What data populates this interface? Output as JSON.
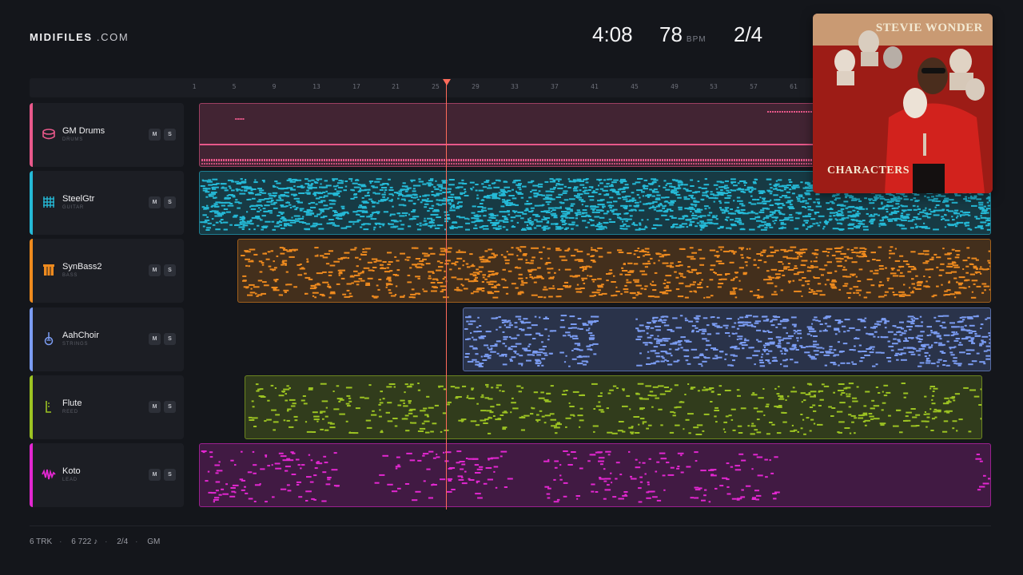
{
  "brand": {
    "bold": "MIDIFILES",
    "dom": ".COM"
  },
  "stats": {
    "time": "4:08",
    "bpm": "78",
    "bpm_unit": "BPM",
    "signature": "2/4"
  },
  "ruler": {
    "ticks": [
      "1",
      "5",
      "9",
      "13",
      "17",
      "21",
      "25",
      "29",
      "33",
      "37",
      "41",
      "45",
      "49",
      "53",
      "57",
      "61"
    ]
  },
  "tracks": [
    {
      "name": "GM Drums",
      "type": "DRUMS",
      "icon": "drum-icon",
      "color": "#e8588a",
      "mute": "M",
      "solo": "S"
    },
    {
      "name": "SteelGtr",
      "type": "GUITAR",
      "icon": "grid-icon",
      "color": "#25b9d6",
      "mute": "M",
      "solo": "S"
    },
    {
      "name": "SynBass2",
      "type": "BASS",
      "icon": "bass-icon",
      "color": "#ee8a1e",
      "mute": "M",
      "solo": "S"
    },
    {
      "name": "AahChoir",
      "type": "STRINGS",
      "icon": "violin-icon",
      "color": "#7b9cf2",
      "mute": "M",
      "solo": "S"
    },
    {
      "name": "Flute",
      "type": "REED",
      "icon": "reed-icon",
      "color": "#9cc322",
      "mute": "M",
      "solo": "S"
    },
    {
      "name": "Koto",
      "type": "LEAD",
      "icon": "wave-icon",
      "color": "#e227d0",
      "mute": "M",
      "solo": "S"
    }
  ],
  "cover": {
    "artist": "STEVIE WONDER",
    "album": "CHARACTERS"
  },
  "footer": {
    "tracks": "6 TRK",
    "notes": "6 722 ♪",
    "signature": "2/4",
    "standard": "GM"
  }
}
